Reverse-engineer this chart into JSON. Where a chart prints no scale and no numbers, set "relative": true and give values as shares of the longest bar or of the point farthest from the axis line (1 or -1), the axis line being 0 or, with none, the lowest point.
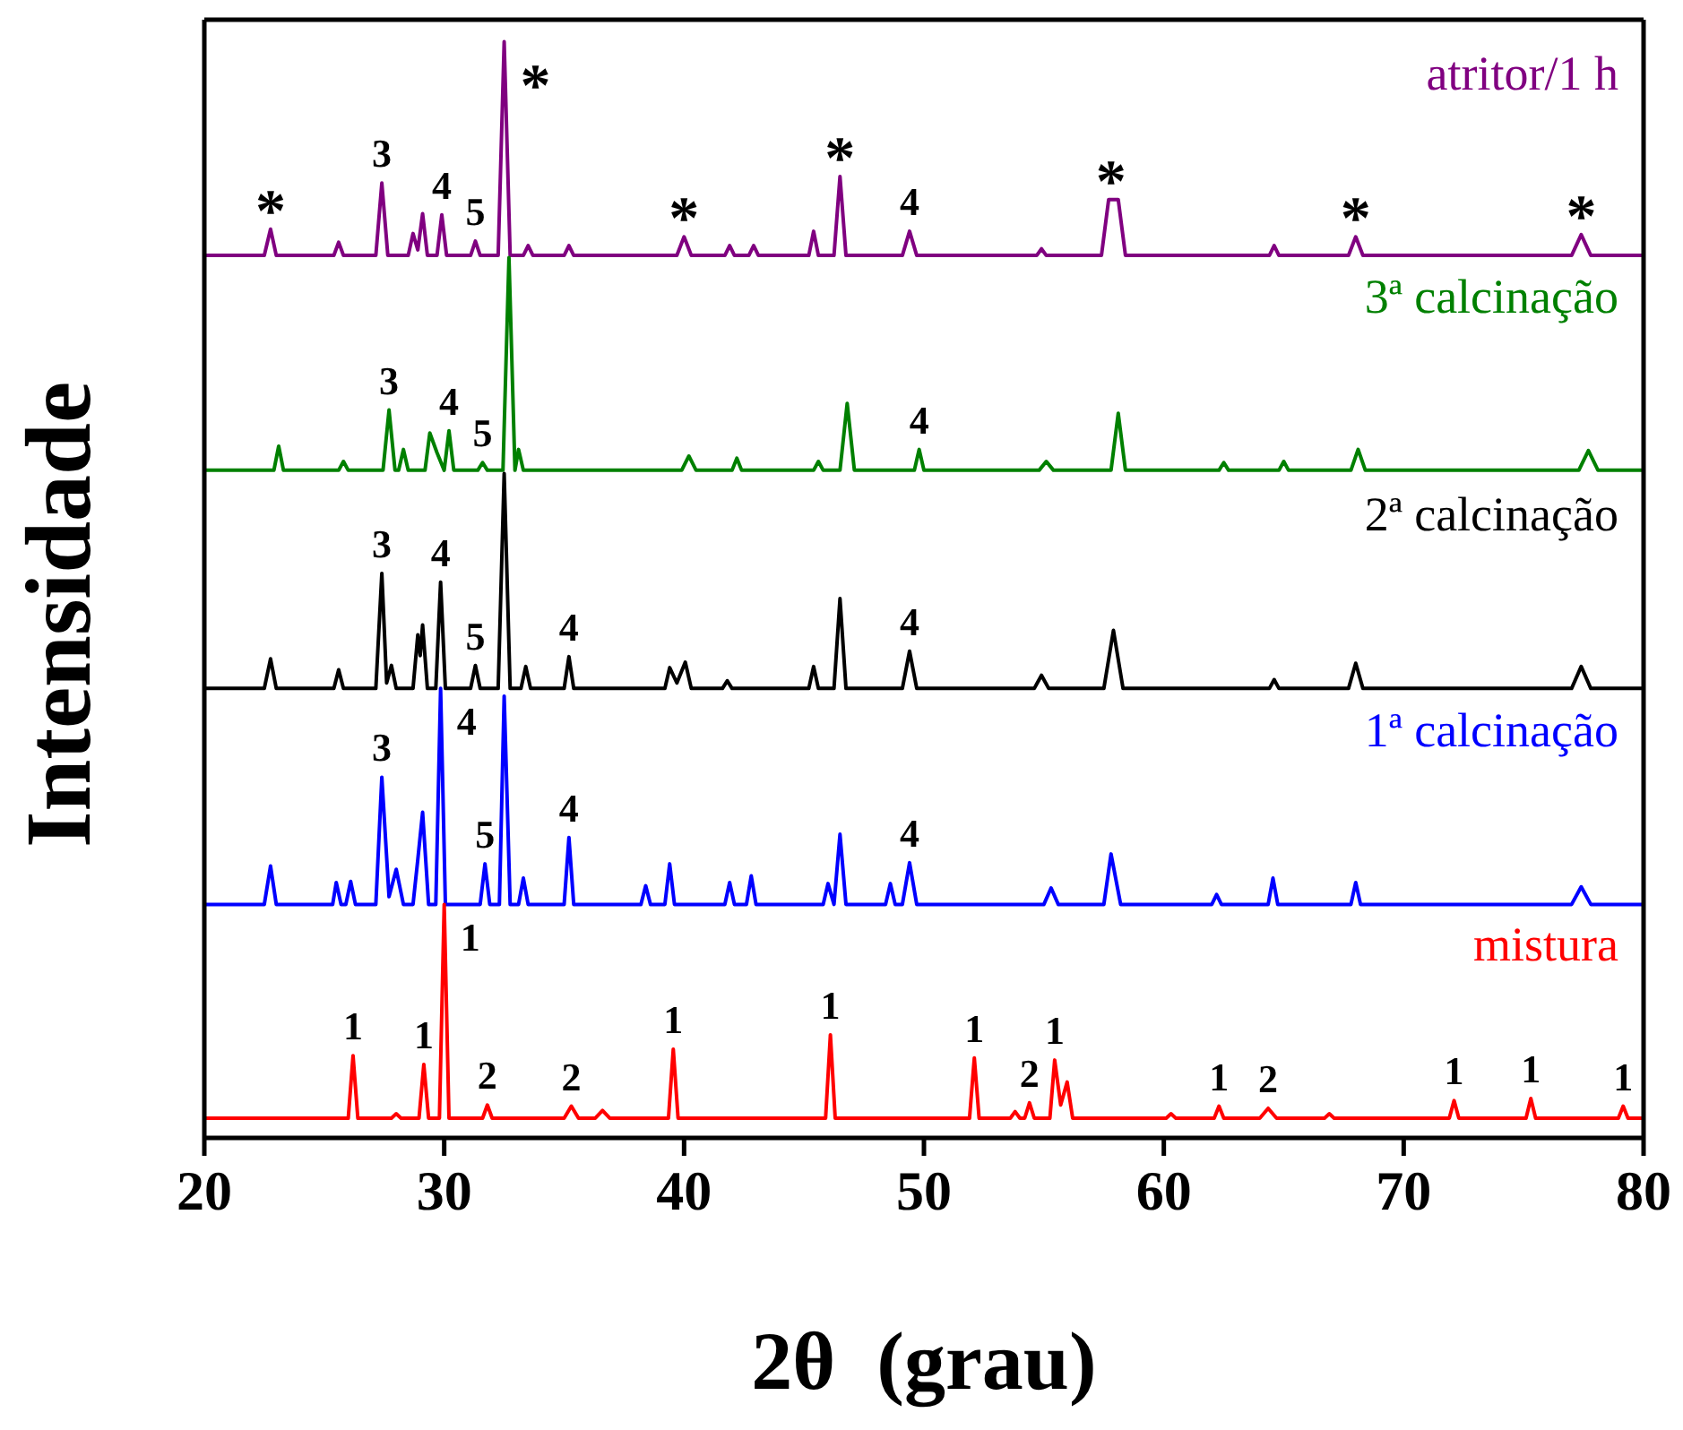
{
  "chart_data": {
    "type": "line",
    "relative": true,
    "xlabel": "2θ  (grau)",
    "ylabel": "Intensidade",
    "xlim": [
      20,
      80
    ],
    "xticks": [
      20,
      30,
      40,
      50,
      60,
      70,
      80
    ],
    "legend": false,
    "marker": "none",
    "line_style": "solid",
    "series": [
      {
        "name": "atritor/1 h",
        "color": "#800080",
        "x": [
          20,
          22.5,
          22.76,
          23.0,
          25.4,
          25.6,
          25.8,
          27.15,
          27.4,
          27.65,
          28.5,
          28.7,
          28.9,
          29.1,
          29.3,
          29.7,
          29.9,
          30.1,
          31.1,
          31.3,
          31.5,
          32.25,
          32.5,
          32.75,
          33.3,
          33.5,
          33.7,
          35.0,
          35.2,
          35.4,
          39.7,
          40.0,
          40.3,
          41.7,
          41.9,
          42.1,
          42.7,
          42.9,
          43.1,
          45.2,
          45.4,
          45.6,
          46.25,
          46.5,
          46.75,
          49.1,
          49.4,
          49.7,
          54.7,
          54.9,
          55.1,
          57.4,
          57.7,
          58.1,
          58.4,
          64.4,
          64.6,
          64.8,
          67.7,
          68.0,
          68.3,
          77.0,
          77.4,
          77.8,
          80
        ],
        "values": [
          0.805,
          0.805,
          0.829,
          0.805,
          0.805,
          0.817,
          0.805,
          0.805,
          0.871,
          0.805,
          0.805,
          0.825,
          0.81,
          0.843,
          0.805,
          0.805,
          0.842,
          0.805,
          0.805,
          0.818,
          0.805,
          0.805,
          1,
          0.805,
          0.805,
          0.814,
          0.805,
          0.805,
          0.814,
          0.805,
          0.805,
          0.822,
          0.805,
          0.805,
          0.814,
          0.805,
          0.805,
          0.814,
          0.805,
          0.805,
          0.827,
          0.805,
          0.805,
          0.877,
          0.805,
          0.805,
          0.827,
          0.805,
          0.805,
          0.811,
          0.805,
          0.805,
          0.856,
          0.856,
          0.805,
          0.805,
          0.814,
          0.805,
          0.805,
          0.822,
          0.805,
          0.805,
          0.824,
          0.805,
          0.805
        ]
      },
      {
        "name": "3ª calcinação",
        "color": "#008000",
        "x": [
          20,
          22.9,
          23.1,
          23.3,
          25.6,
          25.8,
          26.0,
          27.45,
          27.7,
          27.95,
          28.1,
          28.3,
          28.5,
          29.2,
          29.4,
          29.7,
          30.0,
          30.2,
          30.4,
          31.4,
          31.6,
          31.8,
          32.45,
          32.7,
          32.95,
          33.1,
          33.3,
          39.9,
          40.2,
          40.5,
          42.0,
          42.2,
          42.4,
          45.4,
          45.6,
          45.8,
          46.5,
          46.8,
          47.1,
          49.6,
          49.8,
          50.0,
          54.8,
          55.1,
          55.4,
          57.8,
          58.1,
          58.4,
          62.3,
          62.5,
          62.7,
          64.8,
          65.0,
          65.2,
          67.8,
          68.1,
          68.4,
          77.3,
          77.7,
          78.1,
          80
        ],
        "values": [
          0.609,
          0.609,
          0.631,
          0.609,
          0.609,
          0.617,
          0.609,
          0.609,
          0.664,
          0.609,
          0.609,
          0.628,
          0.609,
          0.609,
          0.643,
          0.625,
          0.609,
          0.645,
          0.609,
          0.609,
          0.616,
          0.609,
          0.609,
          0.803,
          0.609,
          0.628,
          0.609,
          0.609,
          0.622,
          0.609,
          0.609,
          0.62,
          0.609,
          0.609,
          0.617,
          0.609,
          0.609,
          0.67,
          0.609,
          0.609,
          0.628,
          0.609,
          0.609,
          0.617,
          0.609,
          0.609,
          0.661,
          0.609,
          0.609,
          0.616,
          0.609,
          0.609,
          0.617,
          0.609,
          0.609,
          0.628,
          0.609,
          0.609,
          0.627,
          0.609,
          0.609
        ]
      },
      {
        "name": "2ª calcinação",
        "color": "#000000",
        "x": [
          20,
          22.5,
          22.76,
          23.0,
          25.4,
          25.6,
          25.8,
          27.15,
          27.4,
          27.6,
          27.8,
          28.0,
          28.7,
          28.9,
          29.0,
          29.1,
          29.3,
          29.65,
          29.85,
          30.05,
          31.1,
          31.3,
          31.5,
          32.25,
          32.5,
          32.75,
          33.2,
          33.4,
          33.6,
          35.0,
          35.2,
          35.4,
          39.2,
          39.4,
          39.7,
          40.05,
          40.3,
          41.6,
          41.8,
          42.0,
          45.2,
          45.4,
          45.6,
          46.25,
          46.5,
          46.75,
          49.1,
          49.4,
          49.7,
          54.6,
          54.9,
          55.2,
          57.5,
          57.9,
          58.3,
          64.4,
          64.6,
          64.8,
          67.7,
          68.0,
          68.3,
          77.0,
          77.4,
          77.8,
          80
        ],
        "values": [
          0.41,
          0.41,
          0.437,
          0.41,
          0.41,
          0.427,
          0.41,
          0.41,
          0.515,
          0.415,
          0.431,
          0.41,
          0.41,
          0.459,
          0.44,
          0.468,
          0.41,
          0.41,
          0.507,
          0.41,
          0.41,
          0.431,
          0.41,
          0.41,
          0.606,
          0.41,
          0.41,
          0.43,
          0.41,
          0.41,
          0.439,
          0.41,
          0.41,
          0.429,
          0.415,
          0.434,
          0.41,
          0.41,
          0.417,
          0.41,
          0.41,
          0.43,
          0.41,
          0.41,
          0.492,
          0.41,
          0.41,
          0.444,
          0.41,
          0.41,
          0.422,
          0.41,
          0.41,
          0.463,
          0.41,
          0.41,
          0.418,
          0.41,
          0.41,
          0.433,
          0.41,
          0.41,
          0.43,
          0.41,
          0.41
        ]
      },
      {
        "name": "1ª calcinação",
        "color": "#0000ff",
        "x": [
          20,
          22.5,
          22.76,
          23.0,
          25.35,
          25.5,
          25.7,
          25.9,
          26.1,
          26.3,
          27.15,
          27.4,
          27.7,
          28.0,
          28.3,
          28.7,
          28.9,
          29.1,
          29.35,
          29.65,
          29.85,
          30.05,
          31.5,
          31.7,
          31.9,
          32.3,
          32.5,
          32.75,
          33.1,
          33.3,
          33.5,
          35.0,
          35.2,
          35.4,
          38.2,
          38.4,
          38.6,
          39.2,
          39.4,
          39.6,
          41.7,
          41.9,
          42.1,
          42.6,
          42.8,
          43.0,
          45.8,
          46.0,
          46.25,
          46.5,
          46.75,
          48.4,
          48.6,
          48.8,
          49.1,
          49.4,
          49.7,
          55.0,
          55.3,
          55.6,
          57.5,
          57.8,
          58.2,
          62.0,
          62.2,
          62.4,
          64.35,
          64.55,
          64.75,
          67.8,
          68.0,
          68.2,
          77.0,
          77.4,
          77.8,
          80
        ],
        "values": [
          0.213,
          0.213,
          0.248,
          0.213,
          0.213,
          0.233,
          0.213,
          0.213,
          0.234,
          0.213,
          0.213,
          0.329,
          0.22,
          0.245,
          0.213,
          0.213,
          0.254,
          0.297,
          0.213,
          0.213,
          0.41,
          0.213,
          0.213,
          0.25,
          0.213,
          0.213,
          0.403,
          0.213,
          0.213,
          0.237,
          0.213,
          0.213,
          0.274,
          0.213,
          0.213,
          0.23,
          0.213,
          0.213,
          0.25,
          0.213,
          0.213,
          0.233,
          0.213,
          0.213,
          0.239,
          0.213,
          0.213,
          0.232,
          0.213,
          0.277,
          0.213,
          0.213,
          0.232,
          0.213,
          0.213,
          0.251,
          0.213,
          0.213,
          0.228,
          0.213,
          0.213,
          0.259,
          0.213,
          0.213,
          0.222,
          0.213,
          0.213,
          0.237,
          0.213,
          0.213,
          0.233,
          0.213,
          0.213,
          0.229,
          0.213,
          0.213
        ]
      },
      {
        "name": "mistura",
        "color": "#ff0000",
        "x": [
          20,
          26.0,
          26.2,
          26.4,
          27.8,
          28.0,
          28.2,
          28.95,
          29.15,
          29.35,
          29.8,
          30.0,
          30.2,
          31.6,
          31.8,
          32.0,
          35.0,
          35.3,
          35.6,
          36.3,
          36.6,
          36.9,
          39.35,
          39.55,
          39.75,
          45.9,
          46.1,
          46.3,
          51.9,
          52.1,
          52.3,
          53.6,
          53.8,
          54.0,
          54.2,
          54.4,
          54.6,
          55.25,
          55.45,
          55.7,
          55.97,
          56.2,
          60.1,
          60.3,
          60.5,
          62.1,
          62.3,
          62.5,
          64.0,
          64.35,
          64.7,
          66.7,
          66.9,
          67.1,
          71.9,
          72.1,
          72.3,
          75.1,
          75.3,
          75.5,
          78.95,
          79.15,
          79.35,
          80
        ],
        "values": [
          0.018,
          0.018,
          0.075,
          0.018,
          0.018,
          0.022,
          0.018,
          0.018,
          0.067,
          0.018,
          0.018,
          0.213,
          0.018,
          0.018,
          0.03,
          0.018,
          0.018,
          0.029,
          0.018,
          0.018,
          0.025,
          0.018,
          0.018,
          0.081,
          0.018,
          0.018,
          0.094,
          0.018,
          0.018,
          0.073,
          0.018,
          0.018,
          0.024,
          0.018,
          0.018,
          0.032,
          0.018,
          0.018,
          0.071,
          0.03,
          0.051,
          0.018,
          0.018,
          0.022,
          0.018,
          0.018,
          0.029,
          0.018,
          0.018,
          0.027,
          0.018,
          0.018,
          0.022,
          0.018,
          0.018,
          0.034,
          0.018,
          0.018,
          0.036,
          0.018,
          0.018,
          0.029,
          0.018,
          0.018
        ]
      }
    ],
    "annotations": [
      {
        "text": "*",
        "x": 22.76,
        "y": 0.829
      },
      {
        "text": "3",
        "x": 27.4,
        "y": 0.871
      },
      {
        "text": "4",
        "x": 29.9,
        "y": 0.842
      },
      {
        "text": "5",
        "x": 31.3,
        "y": 0.818
      },
      {
        "text": "*",
        "x": 32.5,
        "y": 1
      },
      {
        "text": "*",
        "x": 40.0,
        "y": 0.822
      },
      {
        "text": "*",
        "x": 46.5,
        "y": 0.877
      },
      {
        "text": "4",
        "x": 49.4,
        "y": 0.827
      },
      {
        "text": "*",
        "x": 57.8,
        "y": 0.856
      },
      {
        "text": "*",
        "x": 68.0,
        "y": 0.822
      },
      {
        "text": "*",
        "x": 77.4,
        "y": 0.824
      },
      {
        "text": "3",
        "x": 27.7,
        "y": 0.664
      },
      {
        "text": "4",
        "x": 30.2,
        "y": 0.645
      },
      {
        "text": "5",
        "x": 31.6,
        "y": 0.616
      },
      {
        "text": "4",
        "x": 49.8,
        "y": 0.628
      },
      {
        "text": "3",
        "x": 27.4,
        "y": 0.515
      },
      {
        "text": "4",
        "x": 29.85,
        "y": 0.507
      },
      {
        "text": "5",
        "x": 31.3,
        "y": 0.431
      },
      {
        "text": "4",
        "x": 35.2,
        "y": 0.439
      },
      {
        "text": "4",
        "x": 49.4,
        "y": 0.444
      },
      {
        "text": "3",
        "x": 27.4,
        "y": 0.329
      },
      {
        "text": "4",
        "x": 29.85,
        "y": 0.41
      },
      {
        "text": "5",
        "x": 31.7,
        "y": 0.25
      },
      {
        "text": "4",
        "x": 35.2,
        "y": 0.274
      },
      {
        "text": "4",
        "x": 49.4,
        "y": 0.251
      },
      {
        "text": "1",
        "x": 26.2,
        "y": 0.075
      },
      {
        "text": "1",
        "x": 29.15,
        "y": 0.067
      },
      {
        "text": "1",
        "x": 30.0,
        "y": 0.213
      },
      {
        "text": "2",
        "x": 31.8,
        "y": 0.03
      },
      {
        "text": "2",
        "x": 35.3,
        "y": 0.029
      },
      {
        "text": "1",
        "x": 39.55,
        "y": 0.081
      },
      {
        "text": "1",
        "x": 46.1,
        "y": 0.094
      },
      {
        "text": "1",
        "x": 52.1,
        "y": 0.073
      },
      {
        "text": "2",
        "x": 54.4,
        "y": 0.032
      },
      {
        "text": "1",
        "x": 55.45,
        "y": 0.071
      },
      {
        "text": "1",
        "x": 62.3,
        "y": 0.029
      },
      {
        "text": "2",
        "x": 64.35,
        "y": 0.027
      },
      {
        "text": "1",
        "x": 72.1,
        "y": 0.034
      },
      {
        "text": "1",
        "x": 75.3,
        "y": 0.036
      },
      {
        "text": "1",
        "x": 79.15,
        "y": 0.029
      }
    ]
  }
}
